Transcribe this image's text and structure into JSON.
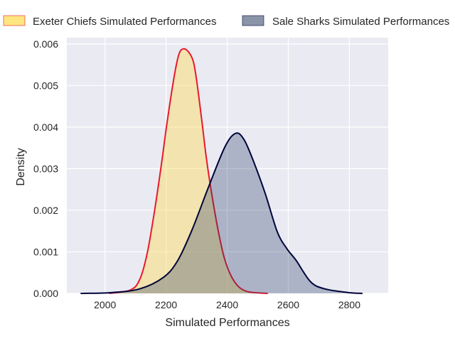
{
  "chart_data": {
    "type": "area",
    "title": "",
    "xlabel": "Simulated Performances",
    "ylabel": "Density",
    "xlim": [
      1875,
      2927
    ],
    "ylim": [
      0,
      0.00615
    ],
    "xticks": [
      2000,
      2200,
      2400,
      2600,
      2800
    ],
    "xtick_labels": [
      "2000",
      "2200",
      "2400",
      "2600",
      "2800"
    ],
    "yticks": [
      0,
      0.001,
      0.002,
      0.003,
      0.004,
      0.005,
      0.006
    ],
    "ytick_labels": [
      "0.000",
      "0.001",
      "0.002",
      "0.003",
      "0.004",
      "0.005",
      "0.006"
    ],
    "grid": true,
    "legend_placement": "top-outside",
    "series": [
      {
        "name": "Exeter Chiefs Simulated Performances",
        "line_color": "#e8192c",
        "fill_color": "#ffd94a",
        "legend_fill": "#ffe680",
        "x": [
          2013,
          2083,
          2114,
          2138,
          2161,
          2184,
          2203,
          2227,
          2242,
          2256,
          2273,
          2289,
          2300,
          2316,
          2331,
          2347,
          2370,
          2393,
          2424,
          2463,
          2533
        ],
        "y": [
          0,
          8e-05,
          0.00034,
          0.00096,
          0.00193,
          0.00307,
          0.0041,
          0.00524,
          0.00575,
          0.00588,
          0.00581,
          0.00558,
          0.00512,
          0.00421,
          0.0033,
          0.0025,
          0.00153,
          0.00079,
          0.00028,
          5e-05,
          0
        ]
      },
      {
        "name": "Sale Sharks Simulated Performances",
        "line_color": "#00053a",
        "fill_color": "#1e3560",
        "legend_fill": "#8b95a8",
        "x": [
          1920,
          2021,
          2114,
          2192,
          2238,
          2285,
          2339,
          2393,
          2428,
          2455,
          2486,
          2525,
          2564,
          2595,
          2626,
          2673,
          2719,
          2797,
          2843
        ],
        "y": [
          0,
          2e-05,
          0.00011,
          0.00039,
          0.00079,
          0.00153,
          0.00256,
          0.00353,
          0.00385,
          0.0037,
          0.00318,
          0.00239,
          0.00148,
          0.00108,
          0.00079,
          0.00028,
          0.00011,
          2e-05,
          0
        ]
      }
    ]
  }
}
